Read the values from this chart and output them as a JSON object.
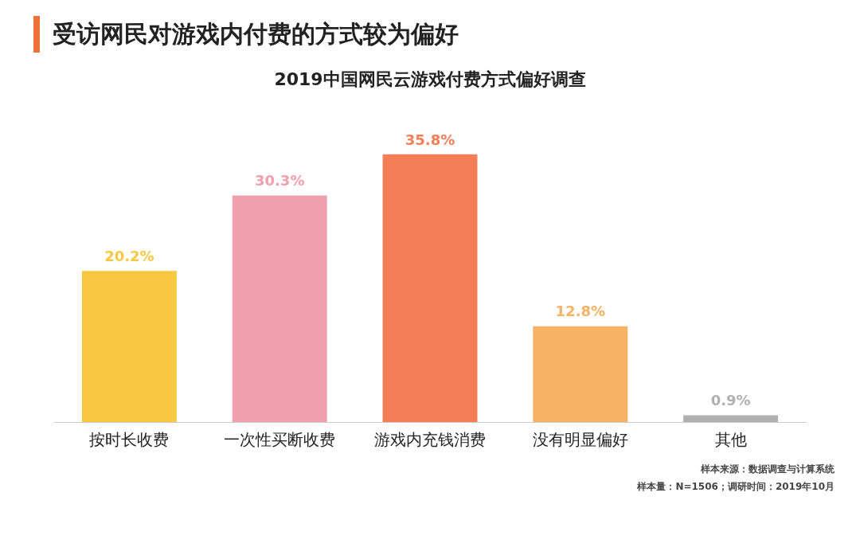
{
  "chart_data": {
    "type": "bar",
    "title": "受访网民对游戏内付费的方式较为偏好",
    "subtitle": "2019中国网民云游戏付费方式偏好调查",
    "categories": [
      "按时长收费",
      "一次性买断收费",
      "游戏内充钱消费",
      "没有明显偏好",
      "其他"
    ],
    "values": [
      20.2,
      30.3,
      35.8,
      12.8,
      0.9
    ],
    "colors": [
      "#f9c843",
      "#f0a0ad",
      "#f37e58",
      "#f6b265",
      "#b0b0b0"
    ],
    "value_labels": [
      "20.2%",
      "30.3%",
      "35.8%",
      "12.8%",
      "0.9%"
    ],
    "grid": false,
    "legend": false,
    "annotations": [
      "样本来源：数据调查与计算系统",
      "样本量：N=1506；调研时间：2019年10月"
    ]
  }
}
